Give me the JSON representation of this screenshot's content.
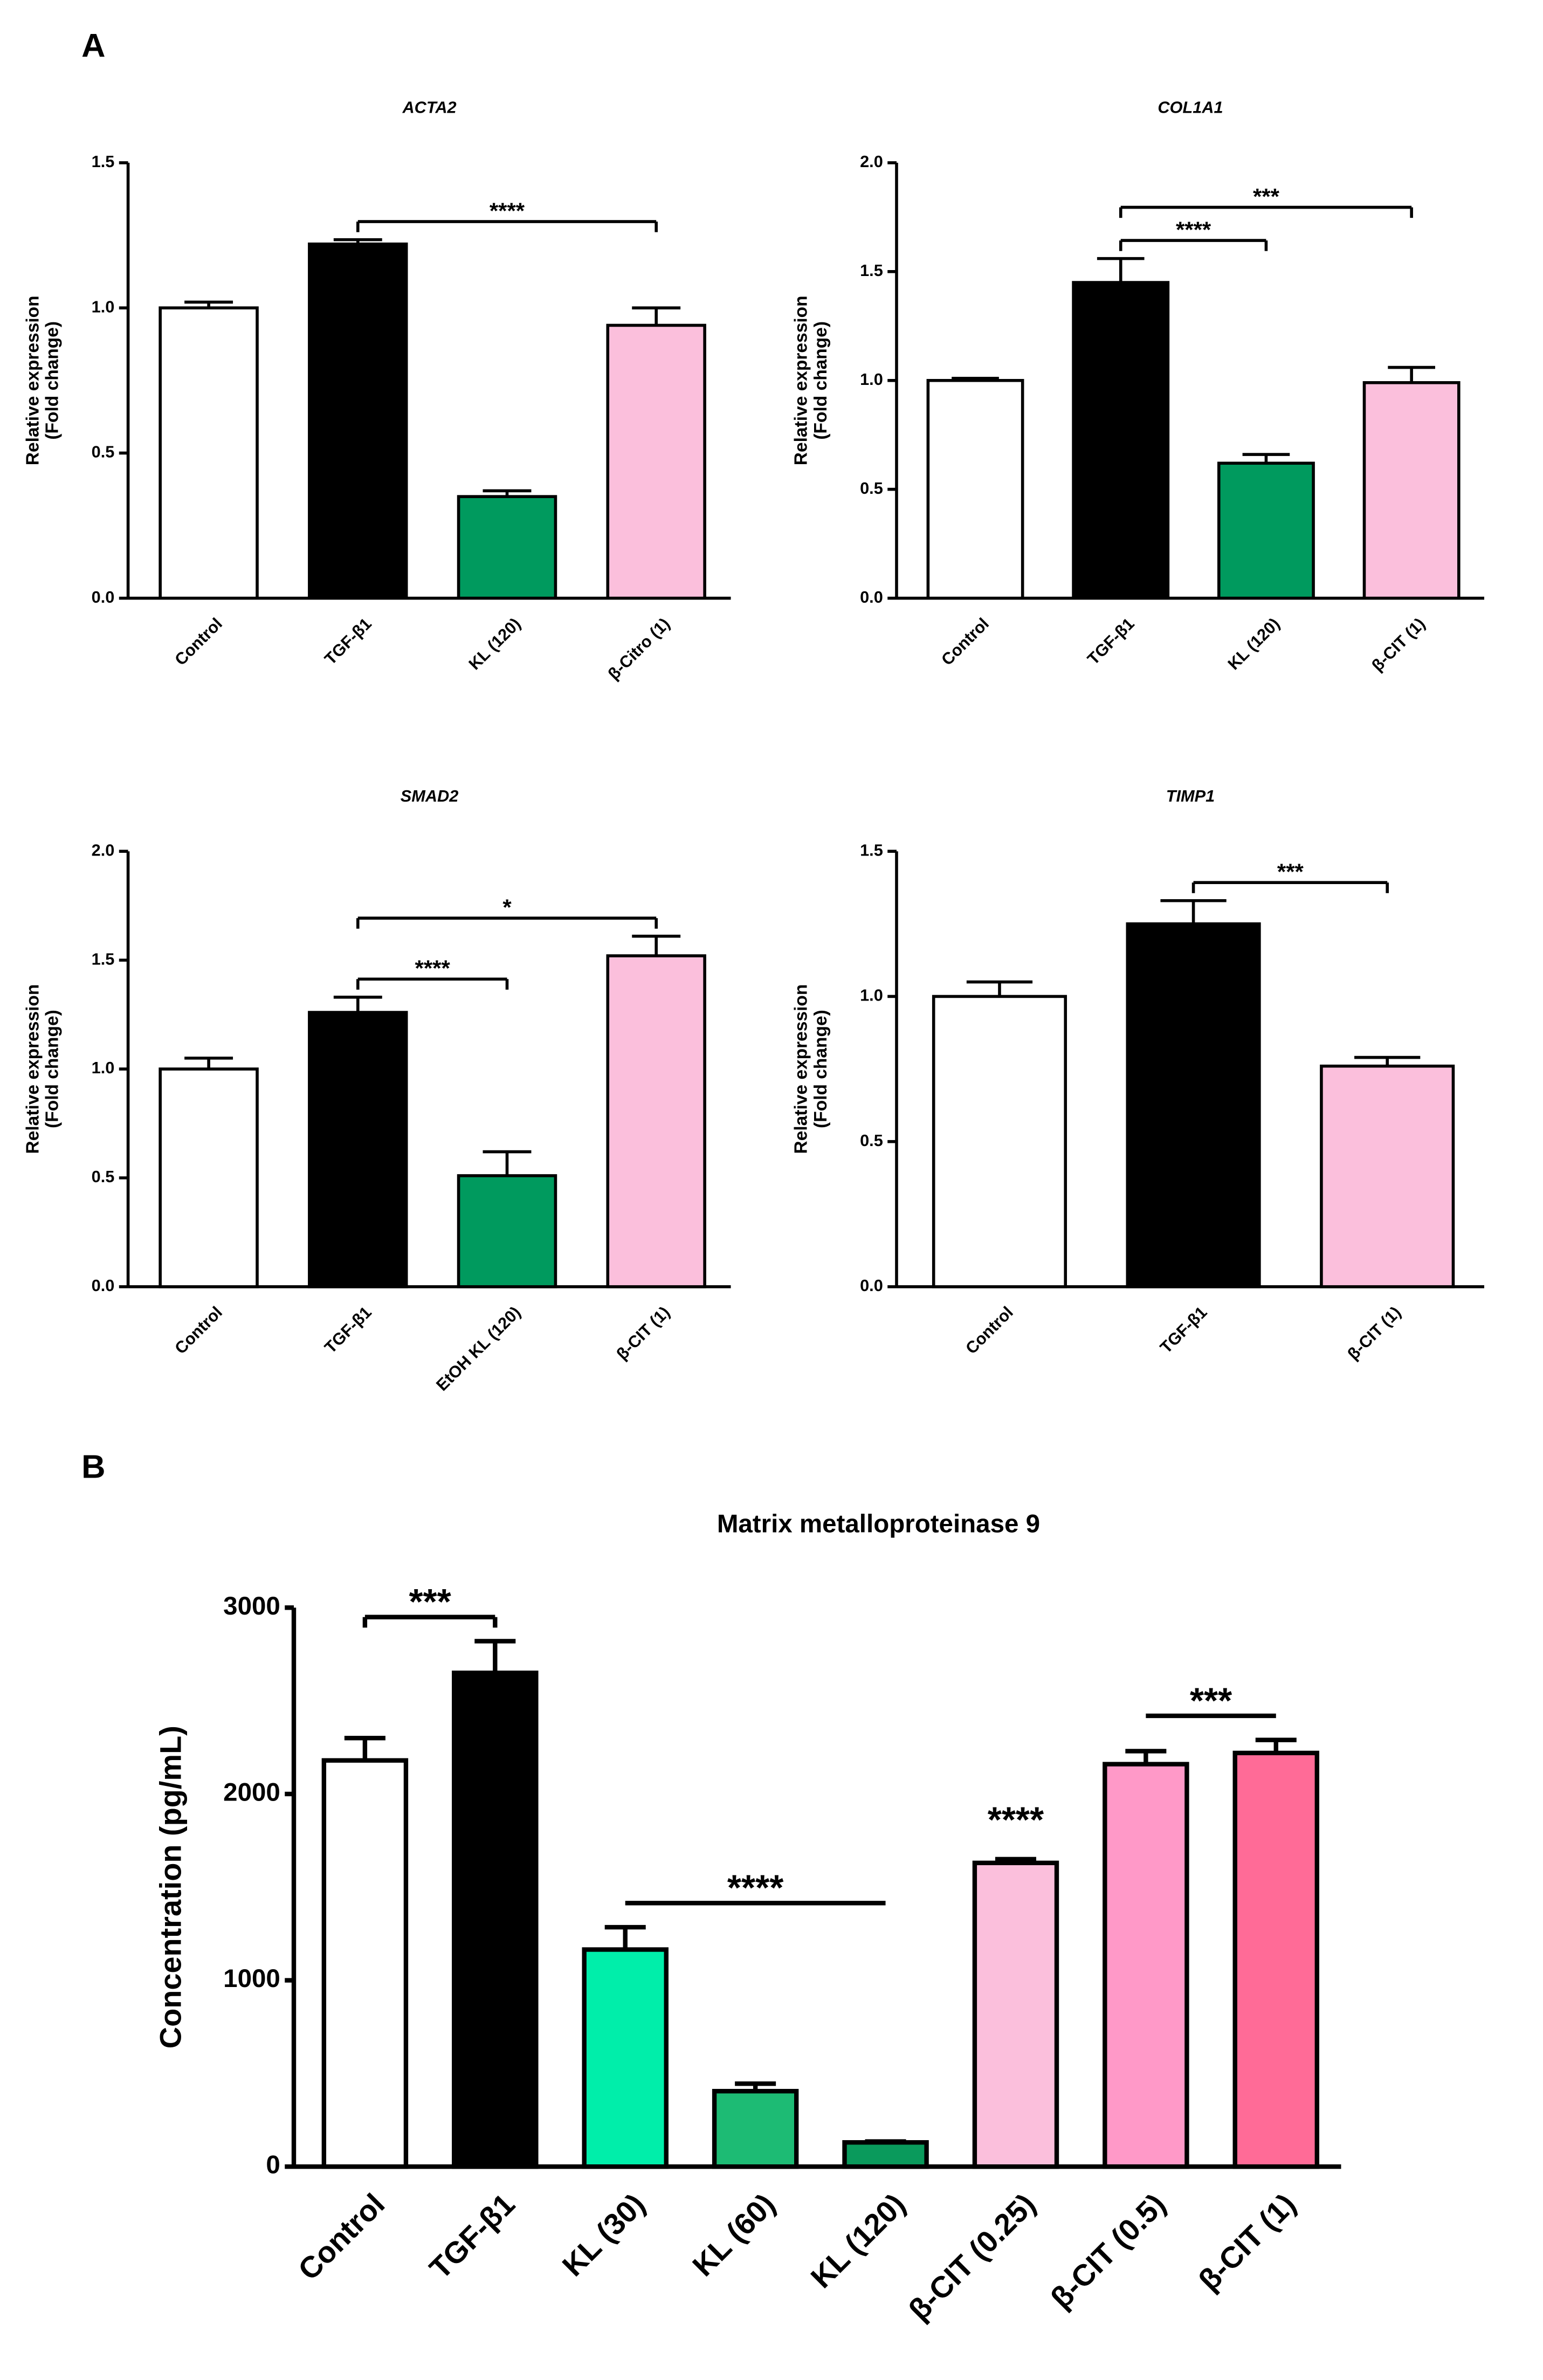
{
  "chart_data": [
    {
      "type": "bar",
      "panel_label": "A",
      "title": "ACTA2",
      "ylabel": [
        "Relative expression",
        "(Fold change)"
      ],
      "categories": [
        "Control",
        "TGF-β1",
        "KL (120)",
        "β-Citro (1)"
      ],
      "values": [
        1.0,
        1.22,
        0.35,
        0.94
      ],
      "errors": [
        0.02,
        0.015,
        0.02,
        0.06
      ],
      "colors": [
        "#ffffff",
        "#000000",
        "#009a5e",
        "#fbbfdc"
      ],
      "ylim": [
        0,
        1.5
      ],
      "yticks": [
        {
          "value": 0,
          "label": "0.0"
        },
        {
          "value": 0.5,
          "label": "0.5"
        },
        {
          "value": 1,
          "label": "1.0"
        },
        {
          "value": 1.5,
          "label": "1.5"
        }
      ],
      "annotations": [
        {
          "label": "****",
          "from": 1,
          "to": 3,
          "style": "bracket"
        }
      ]
    },
    {
      "type": "bar",
      "title": "COL1A1",
      "ylabel": [
        "Relative expression",
        "(Fold change)"
      ],
      "categories": [
        "Control",
        "TGF-β1",
        "KL (120)",
        "β-CIT (1)"
      ],
      "values": [
        1.0,
        1.45,
        0.62,
        0.99
      ],
      "errors": [
        0.01,
        0.11,
        0.04,
        0.07
      ],
      "colors": [
        "#ffffff",
        "#000000",
        "#009a5e",
        "#fbbfdc"
      ],
      "ylim": [
        0,
        2
      ],
      "yticks": [
        {
          "value": 0,
          "label": "0.0"
        },
        {
          "value": 0.5,
          "label": "0.5"
        },
        {
          "value": 1,
          "label": "1.0"
        },
        {
          "value": 1.5,
          "label": "1.5"
        },
        {
          "value": 2,
          "label": "2.0"
        }
      ],
      "annotations": [
        {
          "label": "****",
          "from": 1,
          "to": 2,
          "style": "bracket"
        },
        {
          "label": "***",
          "from": 1,
          "to": 3,
          "style": "bracket"
        }
      ]
    },
    {
      "type": "bar",
      "title": "SMAD2",
      "ylabel": [
        "Relative expression",
        "(Fold change)"
      ],
      "categories": [
        "Control",
        "TGF-β1",
        "EtOH KL (120)",
        "β-CIT (1)"
      ],
      "values": [
        1.0,
        1.26,
        0.51,
        1.52
      ],
      "errors": [
        0.05,
        0.07,
        0.11,
        0.09
      ],
      "colors": [
        "#ffffff",
        "#000000",
        "#009a5e",
        "#fbbfdc"
      ],
      "ylim": [
        0,
        2
      ],
      "yticks": [
        {
          "value": 0,
          "label": "0.0"
        },
        {
          "value": 0.5,
          "label": "0.5"
        },
        {
          "value": 1,
          "label": "1.0"
        },
        {
          "value": 1.5,
          "label": "1.5"
        },
        {
          "value": 2,
          "label": "2.0"
        }
      ],
      "annotations": [
        {
          "label": "****",
          "from": 1,
          "to": 2,
          "style": "bracket"
        },
        {
          "label": "*",
          "from": 1,
          "to": 3,
          "style": "bracket"
        }
      ]
    },
    {
      "type": "bar",
      "title": "TIMP1",
      "ylabel": [
        "Relative expression",
        "(Fold change)"
      ],
      "categories": [
        "Control",
        "TGF-β1",
        "β-CIT (1)"
      ],
      "values": [
        1.0,
        1.25,
        0.76
      ],
      "errors": [
        0.05,
        0.08,
        0.03
      ],
      "colors": [
        "#ffffff",
        "#000000",
        "#fbbfdc"
      ],
      "ylim": [
        0,
        1.5
      ],
      "yticks": [
        {
          "value": 0,
          "label": "0.0"
        },
        {
          "value": 0.5,
          "label": "0.5"
        },
        {
          "value": 1,
          "label": "1.0"
        },
        {
          "value": 1.5,
          "label": "1.5"
        }
      ],
      "annotations": [
        {
          "label": "***",
          "from": 1,
          "to": 2,
          "style": "bracket"
        }
      ]
    },
    {
      "type": "bar",
      "panel_label": "B",
      "title": "Matrix metalloproteinase 9",
      "ylabel": [
        "Concentration (pg/mL)"
      ],
      "categories": [
        "Control",
        "TGF-β1",
        "KL (30)",
        "KL (60)",
        "KL (120)",
        "β-CIT (0.25)",
        "β-CIT (0.5)",
        "β-CIT (1)"
      ],
      "values": [
        2180,
        2650,
        1165,
        405,
        130,
        1630,
        2160,
        2220
      ],
      "errors": [
        120,
        170,
        120,
        40,
        5,
        20,
        70,
        70
      ],
      "colors": [
        "#ffffff",
        "#000000",
        "#00eeaa",
        "#1dbb74",
        "#0a9a5c",
        "#fbbfdc",
        "#ff99c8",
        "#ff6b97"
      ],
      "ylim": [
        0,
        3000
      ],
      "yticks": [
        0,
        1000,
        2000,
        3000
      ],
      "annotations": [
        {
          "label": "***",
          "from": 0,
          "to": 1,
          "style": "bracket"
        },
        {
          "label": "****",
          "from": 2,
          "to": 4,
          "style": "line"
        },
        {
          "label": "****",
          "from": 5,
          "to": 5,
          "style": "star"
        },
        {
          "label": "***",
          "from": 6,
          "to": 7,
          "style": "line"
        }
      ]
    }
  ]
}
